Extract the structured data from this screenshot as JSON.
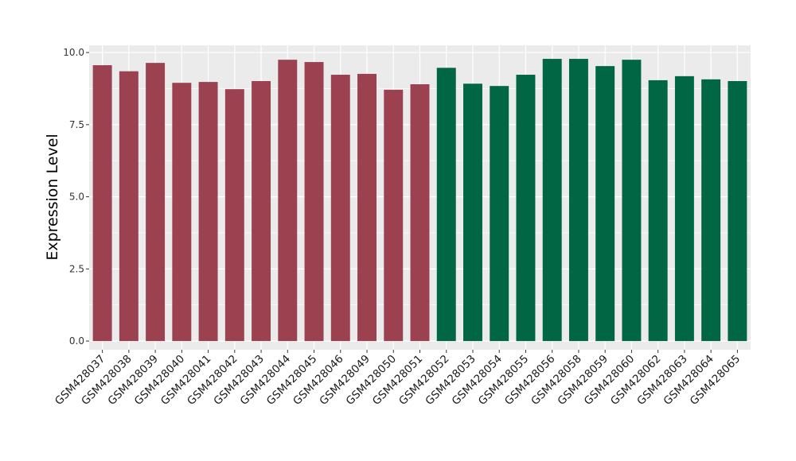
{
  "chart_data": {
    "type": "bar",
    "title": "",
    "xlabel": "",
    "ylabel": "Expression Level",
    "ylim": [
      -0.3,
      10.25
    ],
    "yticks": [
      0.0,
      2.5,
      5.0,
      7.5,
      10.0
    ],
    "ytick_labels": [
      "0.0",
      "2.5",
      "5.0",
      "7.5",
      "10.0"
    ],
    "grid": true,
    "legend": "none",
    "categories": [
      "GSM428037",
      "GSM428038",
      "GSM428039",
      "GSM428040",
      "GSM428041",
      "GSM428042",
      "GSM428043",
      "GSM428044",
      "GSM428045",
      "GSM428046",
      "GSM428049",
      "GSM428050",
      "GSM428051",
      "GSM428052",
      "GSM428053",
      "GSM428054",
      "GSM428055",
      "GSM428056",
      "GSM428058",
      "GSM428059",
      "GSM428060",
      "GSM428062",
      "GSM428063",
      "GSM428064",
      "GSM428065"
    ],
    "values": [
      9.56,
      9.35,
      9.64,
      8.95,
      8.98,
      8.73,
      9.01,
      9.75,
      9.67,
      9.23,
      9.26,
      8.71,
      8.9,
      9.47,
      8.92,
      8.84,
      9.23,
      9.78,
      9.78,
      9.53,
      9.75,
      9.04,
      9.18,
      9.07,
      9.01
    ],
    "groups": [
      "A",
      "A",
      "A",
      "A",
      "A",
      "A",
      "A",
      "A",
      "A",
      "A",
      "A",
      "A",
      "A",
      "B",
      "B",
      "B",
      "B",
      "B",
      "B",
      "B",
      "B",
      "B",
      "B",
      "B",
      "B"
    ],
    "group_colors": {
      "A": "#9b4150",
      "B": "#006643"
    },
    "panel_background": "#ebebeb",
    "grid_color": "#ffffff"
  }
}
